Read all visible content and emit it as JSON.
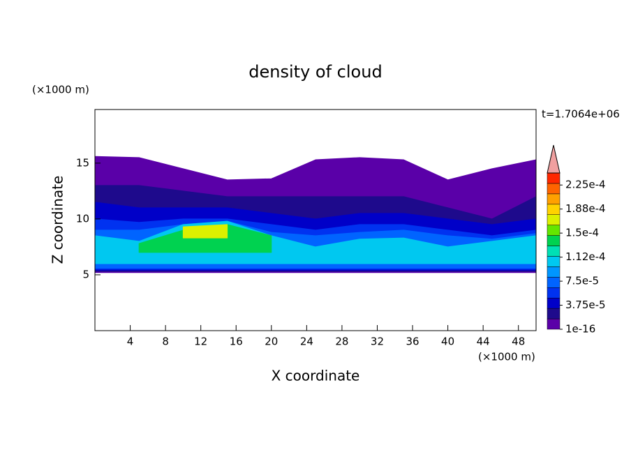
{
  "chart_data": {
    "type": "contour",
    "title": "density of cloud",
    "x_label": "X coordinate",
    "y_label": "Z coordinate",
    "x_unit": "(×1000 m)",
    "y_unit": "(×1000 m)",
    "time_label": "t=1.7064e+06",
    "xlim": [
      0,
      50
    ],
    "ylim": [
      0,
      19.8
    ],
    "xticks": [
      4,
      8,
      12,
      16,
      20,
      24,
      28,
      32,
      36,
      40,
      44,
      48
    ],
    "yticks": [
      5,
      10,
      15
    ],
    "clim": [
      1e-16,
      0.00024375
    ],
    "cticks": [
      1e-16,
      {
        "value": 3.75e-05,
        "label": "3.75e-5"
      },
      {
        "value": 7.5e-05,
        "label": "7.5e-5"
      },
      {
        "value": 0.0001125,
        "label": "1.12e-4"
      },
      {
        "value": 0.00015,
        "label": "1.5e-4"
      },
      {
        "value": 0.0001875,
        "label": "1.88e-4"
      },
      {
        "value": 0.000225,
        "label": "2.25e-4"
      }
    ],
    "colors": [
      "#5a00a8",
      "#1e0a8c",
      "#0000c8",
      "#0032f0",
      "#0064ff",
      "#0096ff",
      "#00c8f0",
      "#00e0b4",
      "#00d250",
      "#64e600",
      "#dcf000",
      "#ffd200",
      "#ffa000",
      "#ff6400",
      "#ff2800"
    ],
    "over_color": "#f0a0a0",
    "x": [
      0,
      5,
      10,
      15,
      20,
      25,
      30,
      35,
      40,
      45,
      50
    ],
    "bands": [
      {
        "level": 0,
        "bottom": [
          5.2,
          5.2,
          5.2,
          5.2,
          5.2,
          5.2,
          5.2,
          5.2,
          5.2,
          5.2,
          5.2
        ],
        "top": [
          15.6,
          15.5,
          14.5,
          13.5,
          13.6,
          15.3,
          15.5,
          15.3,
          13.5,
          14.5,
          15.3
        ]
      },
      {
        "level": 1,
        "bottom": [
          5.3,
          5.3,
          5.3,
          5.3,
          5.3,
          5.3,
          5.3,
          5.3,
          5.3,
          5.3,
          5.3
        ],
        "top": [
          13,
          13,
          12.5,
          12,
          12,
          12,
          12,
          12,
          11,
          10,
          12
        ]
      },
      {
        "level": 2,
        "bottom": [
          5.4,
          5.4,
          5.4,
          5.4,
          5.4,
          5.4,
          5.4,
          5.4,
          5.4,
          5.4,
          5.4
        ],
        "top": [
          11.5,
          11,
          11,
          11,
          10.5,
          10,
          10.5,
          10.5,
          10,
          9.5,
          10
        ]
      },
      {
        "level": 3,
        "bottom": [
          5.5,
          5.5,
          5.5,
          5.5,
          5.5,
          5.5,
          5.5,
          5.5,
          5.5,
          5.5,
          5.5
        ],
        "top": [
          10,
          9.7,
          10,
          10,
          9.5,
          9,
          9.5,
          9.5,
          9,
          8.5,
          9
        ]
      },
      {
        "level": 4,
        "bottom": [
          5.6,
          5.6,
          5.6,
          5.6,
          5.6,
          5.6,
          5.6,
          5.6,
          5.6,
          5.6,
          5.6
        ],
        "top": [
          9,
          9,
          9.5,
          9.8,
          8.8,
          8.5,
          8.8,
          9,
          8.5,
          8.2,
          8.7
        ]
      },
      {
        "level": 6,
        "bottom": [
          6,
          6,
          6,
          6,
          6,
          6,
          6,
          6,
          6,
          6,
          6
        ],
        "top": [
          8.5,
          8,
          9.5,
          9.8,
          8.5,
          7.5,
          8.2,
          8.3,
          7.5,
          8,
          8.5
        ]
      },
      {
        "level": 8,
        "bottom": [
          null,
          7,
          7,
          7,
          7,
          null,
          null,
          null,
          null,
          null,
          null
        ],
        "top": [
          null,
          7.8,
          9,
          9.5,
          8.5,
          null,
          null,
          null,
          null,
          null,
          null
        ]
      },
      {
        "level": 10,
        "bottom": [
          null,
          null,
          8.3,
          8.3,
          null,
          null,
          null,
          null,
          null,
          null,
          null
        ],
        "top": [
          null,
          null,
          9.3,
          9.5,
          null,
          null,
          null,
          null,
          null,
          null,
          null
        ]
      }
    ]
  }
}
